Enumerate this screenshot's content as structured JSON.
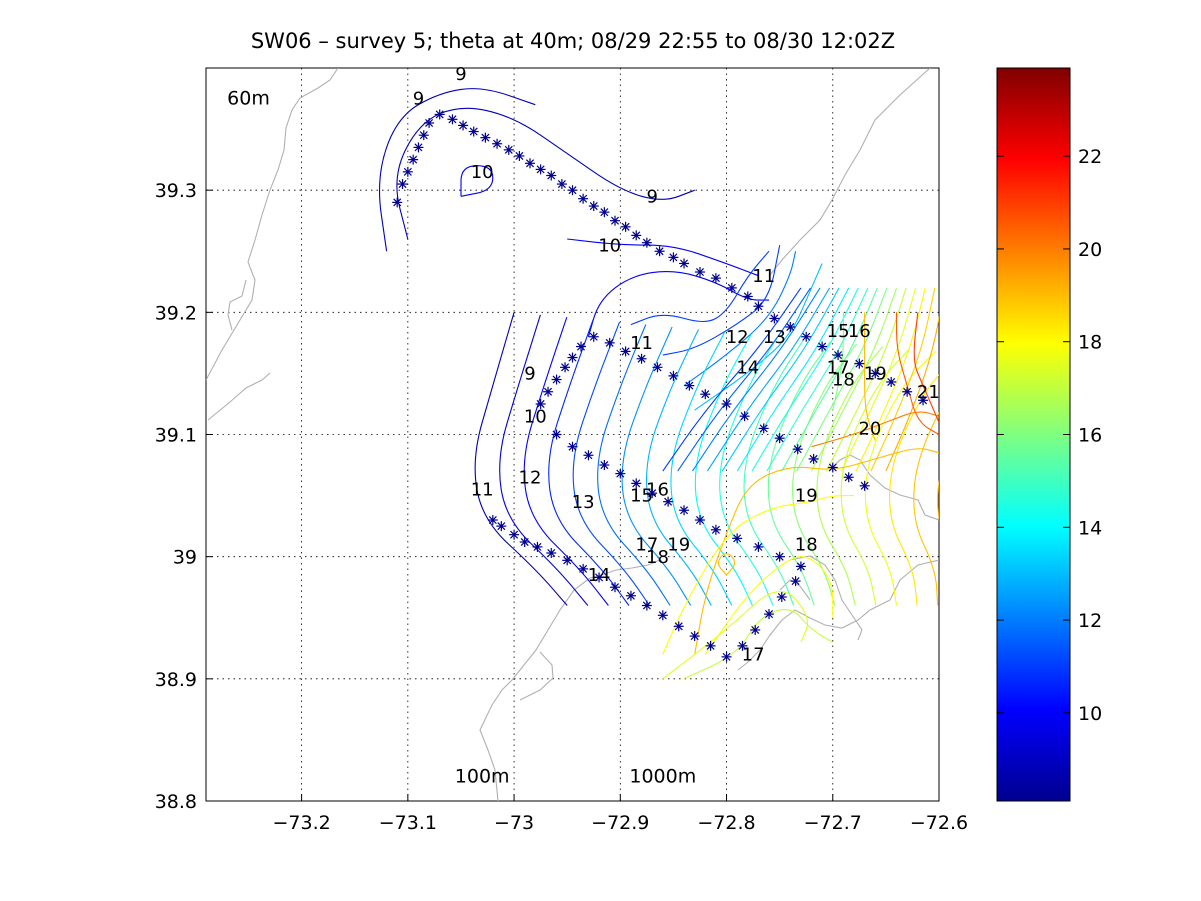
{
  "chart_data": {
    "type": "contour",
    "title": "SW06 – survey 5; theta at 40m; 08/29 22:55 to 08/30 12:02Z",
    "xlabel": "",
    "ylabel": "",
    "xlim": [
      -73.29,
      -72.6
    ],
    "ylim": [
      38.8,
      39.4
    ],
    "grid": true,
    "x_ticks": [
      -73.2,
      -73.1,
      -73.0,
      -72.9,
      -72.8,
      -72.7,
      -72.6
    ],
    "x_tick_labels": [
      "−73.2",
      "−73.1",
      "−73",
      "−72.9",
      "−72.8",
      "−72.7",
      "−72.6"
    ],
    "y_ticks": [
      38.8,
      38.9,
      39.0,
      39.1,
      39.2,
      39.3
    ],
    "y_tick_labels": [
      "38.8",
      "38.9",
      "39",
      "39.1",
      "39.2",
      "39.3"
    ],
    "isobath_labels": [
      {
        "text": "60m",
        "x": -73.25,
        "y": 39.37
      },
      {
        "text": "100m",
        "x": -73.03,
        "y": 38.815
      },
      {
        "text": "1000m",
        "x": -72.86,
        "y": 38.815
      }
    ],
    "contour_levels": [
      9,
      10,
      11,
      12,
      13,
      14,
      15,
      16,
      17,
      18,
      19,
      20,
      21
    ],
    "contour_labels": [
      {
        "text": "9",
        "x": -73.05,
        "y": 39.39
      },
      {
        "text": "9",
        "x": -73.09,
        "y": 39.37
      },
      {
        "text": "10",
        "x": -73.03,
        "y": 39.31
      },
      {
        "text": "9",
        "x": -72.87,
        "y": 39.29
      },
      {
        "text": "10",
        "x": -72.91,
        "y": 39.25
      },
      {
        "text": "11",
        "x": -72.765,
        "y": 39.225
      },
      {
        "text": "9",
        "x": -72.985,
        "y": 39.145
      },
      {
        "text": "10",
        "x": -72.98,
        "y": 39.11
      },
      {
        "text": "11",
        "x": -72.88,
        "y": 39.17
      },
      {
        "text": "12",
        "x": -72.79,
        "y": 39.175
      },
      {
        "text": "13",
        "x": -72.755,
        "y": 39.175
      },
      {
        "text": "14",
        "x": -72.78,
        "y": 39.15
      },
      {
        "text": "15",
        "x": -72.695,
        "y": 39.18
      },
      {
        "text": "16",
        "x": -72.675,
        "y": 39.18
      },
      {
        "text": "17",
        "x": -72.695,
        "y": 39.15
      },
      {
        "text": "18",
        "x": -72.69,
        "y": 39.14
      },
      {
        "text": "19",
        "x": -72.66,
        "y": 39.145
      },
      {
        "text": "21",
        "x": -72.61,
        "y": 39.13
      },
      {
        "text": "20",
        "x": -72.665,
        "y": 39.1
      },
      {
        "text": "11",
        "x": -73.03,
        "y": 39.05
      },
      {
        "text": "12",
        "x": -72.985,
        "y": 39.06
      },
      {
        "text": "13",
        "x": -72.935,
        "y": 39.04
      },
      {
        "text": "15",
        "x": -72.88,
        "y": 39.045
      },
      {
        "text": "16",
        "x": -72.865,
        "y": 39.05
      },
      {
        "text": "19",
        "x": -72.725,
        "y": 39.045
      },
      {
        "text": "17",
        "x": -72.875,
        "y": 39.005
      },
      {
        "text": "18",
        "x": -72.865,
        "y": 38.995
      },
      {
        "text": "19",
        "x": -72.845,
        "y": 39.005
      },
      {
        "text": "18",
        "x": -72.725,
        "y": 39.005
      },
      {
        "text": "14",
        "x": -72.92,
        "y": 38.98
      },
      {
        "text": "17",
        "x": -72.775,
        "y": 38.915
      }
    ],
    "stations": [
      [
        -73.11,
        39.29
      ],
      [
        -73.105,
        39.305
      ],
      [
        -73.1,
        39.315
      ],
      [
        -73.095,
        39.325
      ],
      [
        -73.09,
        39.335
      ],
      [
        -73.085,
        39.345
      ],
      [
        -73.08,
        39.355
      ],
      [
        -73.07,
        39.362
      ],
      [
        -73.058,
        39.358
      ],
      [
        -73.048,
        39.353
      ],
      [
        -73.038,
        39.348
      ],
      [
        -73.027,
        39.343
      ],
      [
        -73.016,
        39.338
      ],
      [
        -73.005,
        39.333
      ],
      [
        -72.995,
        39.328
      ],
      [
        -72.985,
        39.322
      ],
      [
        -72.975,
        39.317
      ],
      [
        -72.965,
        39.312
      ],
      [
        -72.955,
        39.305
      ],
      [
        -72.945,
        39.3
      ],
      [
        -72.935,
        39.293
      ],
      [
        -72.925,
        39.287
      ],
      [
        -72.915,
        39.282
      ],
      [
        -72.905,
        39.275
      ],
      [
        -72.895,
        39.27
      ],
      [
        -72.885,
        39.263
      ],
      [
        -72.875,
        39.257
      ],
      [
        -72.863,
        39.25
      ],
      [
        -72.85,
        39.245
      ],
      [
        -72.84,
        39.24
      ],
      [
        -72.825,
        39.233
      ],
      [
        -72.81,
        39.228
      ],
      [
        -72.795,
        39.22
      ],
      [
        -72.78,
        39.213
      ],
      [
        -72.77,
        39.205
      ],
      [
        -72.755,
        39.195
      ],
      [
        -72.74,
        39.188
      ],
      [
        -72.725,
        39.18
      ],
      [
        -72.71,
        39.172
      ],
      [
        -72.695,
        39.165
      ],
      [
        -72.675,
        39.158
      ],
      [
        -72.66,
        39.15
      ],
      [
        -72.645,
        39.143
      ],
      [
        -72.63,
        39.135
      ],
      [
        -72.615,
        39.128
      ],
      [
        -73.02,
        39.03
      ],
      [
        -73.012,
        39.025
      ],
      [
        -73.0,
        39.018
      ],
      [
        -72.99,
        39.012
      ],
      [
        -72.978,
        39.008
      ],
      [
        -72.965,
        39.003
      ],
      [
        -72.95,
        38.997
      ],
      [
        -72.935,
        38.99
      ],
      [
        -72.92,
        38.983
      ],
      [
        -72.905,
        38.975
      ],
      [
        -72.89,
        38.968
      ],
      [
        -72.875,
        38.96
      ],
      [
        -72.86,
        38.952
      ],
      [
        -72.845,
        38.943
      ],
      [
        -72.83,
        38.935
      ],
      [
        -72.815,
        38.927
      ],
      [
        -72.8,
        38.918
      ],
      [
        -72.785,
        38.927
      ],
      [
        -72.773,
        38.94
      ],
      [
        -72.76,
        38.953
      ],
      [
        -72.748,
        38.967
      ],
      [
        -72.735,
        38.98
      ],
      [
        -72.975,
        39.125
      ],
      [
        -72.968,
        39.135
      ],
      [
        -72.96,
        39.145
      ],
      [
        -72.952,
        39.155
      ],
      [
        -72.945,
        39.163
      ],
      [
        -72.937,
        39.172
      ],
      [
        -72.925,
        39.18
      ],
      [
        -72.91,
        39.175
      ],
      [
        -72.895,
        39.168
      ],
      [
        -72.88,
        39.162
      ],
      [
        -72.865,
        39.155
      ],
      [
        -72.85,
        39.148
      ],
      [
        -72.835,
        39.14
      ],
      [
        -72.82,
        39.133
      ],
      [
        -72.8,
        39.125
      ],
      [
        -72.783,
        39.115
      ],
      [
        -72.765,
        39.105
      ],
      [
        -72.75,
        39.097
      ],
      [
        -72.733,
        39.088
      ],
      [
        -72.718,
        39.08
      ],
      [
        -72.7,
        39.073
      ],
      [
        -72.685,
        39.065
      ],
      [
        -72.67,
        39.058
      ],
      [
        -72.96,
        39.1
      ],
      [
        -72.945,
        39.09
      ],
      [
        -72.93,
        39.083
      ],
      [
        -72.915,
        39.075
      ],
      [
        -72.9,
        39.068
      ],
      [
        -72.885,
        39.06
      ],
      [
        -72.87,
        39.052
      ],
      [
        -72.855,
        39.045
      ],
      [
        -72.84,
        39.038
      ],
      [
        -72.825,
        39.03
      ],
      [
        -72.81,
        39.022
      ],
      [
        -72.79,
        39.015
      ],
      [
        -72.77,
        39.008
      ],
      [
        -72.75,
        39.0
      ],
      [
        -72.73,
        38.992
      ]
    ],
    "colorbar": {
      "colormap": "jet",
      "min": 8.1,
      "max": 23.9,
      "ticks": [
        10,
        12,
        14,
        16,
        18,
        20,
        22
      ],
      "tick_labels": [
        "10",
        "12",
        "14",
        "16",
        "18",
        "20",
        "22"
      ]
    },
    "colors": {
      "station_marker": "#00008f",
      "coastline": "#b0b0b0",
      "grid": "#000000"
    }
  }
}
